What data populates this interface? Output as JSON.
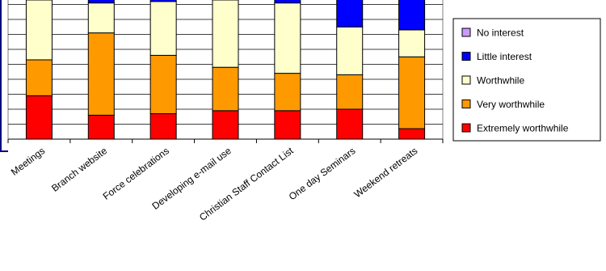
{
  "chart_data": {
    "type": "bar",
    "stacked": true,
    "percent": true,
    "categories": [
      "Meetings",
      "Branch website",
      "Force celebrations",
      "Developing e-mail use",
      "Christian Staff Contact List",
      "One day Seminars",
      "Weekend retreats"
    ],
    "series": [
      {
        "name": "Extremely worthwhile",
        "color": "#ff0000",
        "values": [
          29,
          16,
          17,
          19,
          19,
          20,
          7
        ]
      },
      {
        "name": "Very worthwhile",
        "color": "#ff9900",
        "values": [
          24,
          55,
          39,
          29,
          25,
          23,
          48
        ]
      },
      {
        "name": "Worthwhile",
        "color": "#ffffcc",
        "values": [
          40,
          20,
          36,
          45,
          47,
          32,
          18
        ]
      },
      {
        "name": "Little interest",
        "color": "#0000ff",
        "values": [
          7,
          7,
          8,
          7,
          9,
          25,
          27
        ]
      },
      {
        "name": "No interest",
        "color": "#cc99ff",
        "values": [
          0,
          2,
          0,
          0,
          0,
          0,
          0
        ]
      }
    ],
    "ylim": [
      0,
      100
    ],
    "grid": true,
    "legend": "right"
  }
}
